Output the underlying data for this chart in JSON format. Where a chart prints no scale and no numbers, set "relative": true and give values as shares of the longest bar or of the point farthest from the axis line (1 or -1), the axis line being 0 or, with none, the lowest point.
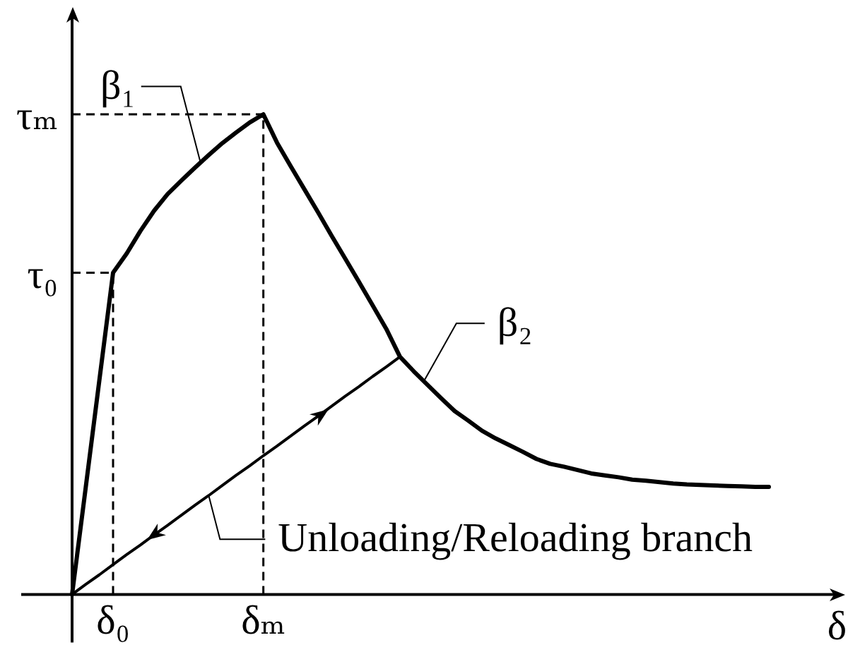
{
  "chart_data": {
    "type": "line",
    "relative": true,
    "xlabel": "δ",
    "categories": [
      null,
      null,
      null,
      "δ₀",
      null,
      null,
      null,
      null,
      null,
      null,
      null,
      null,
      null,
      null,
      "δₘ",
      null,
      null,
      null,
      null,
      null,
      null,
      null,
      null,
      null,
      null,
      null,
      null,
      null,
      null,
      null,
      null,
      null,
      null,
      null,
      null,
      null,
      null,
      null,
      null,
      null,
      null,
      null,
      null,
      null,
      null,
      null,
      null,
      null,
      null,
      null,
      null,
      null
    ],
    "series": [
      {
        "color": "#000000",
        "values": [
          0,
          0.223,
          0.447,
          0.67,
          0.71,
          0.757,
          0.799,
          0.834,
          0.862,
          0.889,
          0.915,
          0.94,
          0.962,
          0.983,
          1.0,
          0.941,
          0.892,
          0.844,
          0.796,
          0.747,
          0.699,
          0.651,
          0.602,
          0.553,
          0.495,
          0.465,
          0.437,
          0.409,
          0.382,
          0.362,
          0.341,
          0.325,
          0.311,
          0.297,
          0.282,
          0.272,
          0.266,
          0.259,
          0.252,
          0.248,
          0.244,
          0.239,
          0.237,
          0.234,
          0.231,
          0.229,
          0.228,
          0.227,
          0.226,
          0.225,
          0.224,
          0.224
        ]
      },
      {
        "color": "#000000",
        "values": [
          0,
          0.021,
          0.041,
          0.062,
          0.083,
          0.103,
          0.124,
          0.144,
          0.165,
          0.186,
          0.206,
          0.227,
          0.248,
          0.268,
          0.289,
          0.309,
          0.33,
          0.351,
          0.371,
          0.392,
          0.413,
          0.433,
          0.454,
          0.474,
          0.495,
          null,
          null,
          null,
          null,
          null,
          null,
          null,
          null,
          null,
          null,
          null,
          null,
          null,
          null,
          null,
          null,
          null,
          null,
          null,
          null,
          null,
          null,
          null,
          null,
          null,
          null,
          null
        ]
      }
    ],
    "ref_lines": [
      {
        "axis": "y",
        "value": 0.67,
        "label": "τ₀",
        "line_style": "dashed",
        "color": "#000000"
      },
      {
        "axis": "y",
        "value": 1,
        "label": "τₘ",
        "line_style": "dashed",
        "color": "#000000"
      },
      {
        "axis": "x",
        "value": "δ₀",
        "line_style": "dashed",
        "color": "#000000"
      },
      {
        "axis": "x",
        "value": "δₘ",
        "line_style": "dashed",
        "color": "#000000"
      }
    ],
    "annotations": [
      "β₁",
      "β₂",
      "Unloading/Reloading branch"
    ],
    "legend": false,
    "grid": false,
    "marker": "none"
  }
}
